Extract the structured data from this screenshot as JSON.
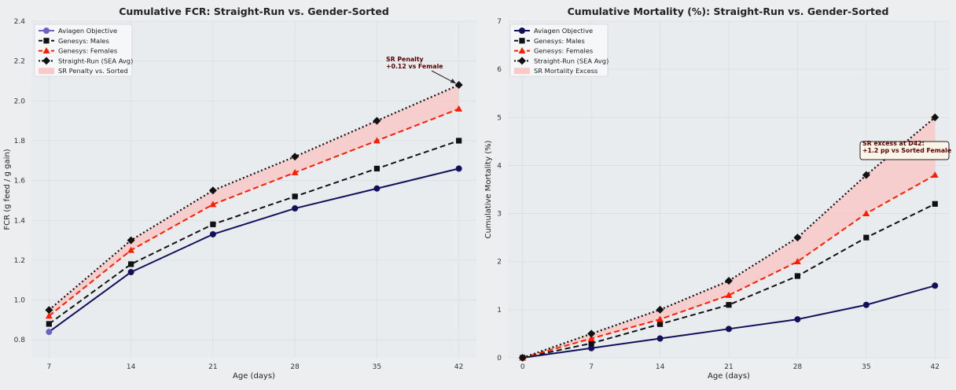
{
  "colors": {
    "figure_bg": "#eceef0",
    "plot_bg": "#e9ecef",
    "grid": "#d9dde1",
    "objective": "#12105a",
    "objective_marker_fcr": "#6b63c4",
    "males": "#111111",
    "females": "#ff1c00",
    "straight_run": "#111111",
    "penalty_fill": "#f8c9c7",
    "annotation_text": "#5a0000"
  },
  "chart_data": [
    {
      "type": "line",
      "title": "Cumulative FCR: Straight-Run vs. Gender-Sorted",
      "xlabel": "Age (days)",
      "ylabel": "FCR (g feed / g gain)",
      "x": [
        7,
        14,
        21,
        28,
        35,
        42
      ],
      "xlim": [
        5.5,
        43.5
      ],
      "ylim": [
        0.71,
        2.4
      ],
      "xticks": [
        7,
        14,
        21,
        28,
        35,
        42
      ],
      "yticks": [
        0.8,
        1.0,
        1.2,
        1.4,
        1.6,
        1.8,
        2.0,
        2.2,
        2.4
      ],
      "tick_decimals": 1,
      "grid": true,
      "legend_position": "top-left",
      "series": [
        {
          "key": "objective",
          "name": "Aviagen Objective",
          "style": "solid",
          "marker": "circle",
          "values": [
            0.84,
            1.14,
            1.33,
            1.46,
            1.56,
            1.66
          ]
        },
        {
          "key": "males",
          "name": "Genesys: Males",
          "style": "dashed",
          "marker": "square",
          "values": [
            0.88,
            1.18,
            1.38,
            1.52,
            1.66,
            1.8
          ]
        },
        {
          "key": "females",
          "name": "Genesys: Females",
          "style": "dashed",
          "marker": "triangle",
          "values": [
            0.92,
            1.25,
            1.48,
            1.64,
            1.8,
            1.96
          ]
        },
        {
          "key": "straight_run",
          "name": "Straight-Run (SEA Avg)",
          "style": "dotted",
          "marker": "diamond",
          "values": [
            0.95,
            1.3,
            1.55,
            1.72,
            1.9,
            2.08
          ]
        }
      ],
      "band": {
        "name": "SR Penalty vs. Sorted",
        "lower": "females",
        "upper": "straight_run"
      },
      "annotation": {
        "lines": [
          "SR Penalty",
          "+0.12 vs Female"
        ],
        "boxed": false,
        "target": [
          42,
          2.08
        ]
      }
    },
    {
      "type": "line",
      "title": "Cumulative Mortality (%): Straight-Run vs. Gender-Sorted",
      "xlabel": "Age (days)",
      "ylabel": "Cumulative Mortality (%)",
      "x": [
        0,
        7,
        14,
        21,
        28,
        35,
        42
      ],
      "xlim": [
        -1.5,
        43.5
      ],
      "ylim": [
        0,
        7
      ],
      "xticks": [
        0,
        7,
        14,
        21,
        28,
        35,
        42
      ],
      "yticks": [
        0,
        1,
        2,
        3,
        4,
        5,
        6,
        7
      ],
      "tick_decimals": 0,
      "grid": true,
      "legend_position": "top-left",
      "series": [
        {
          "key": "objective",
          "name": "Aviagen Objective",
          "style": "solid",
          "marker": "circle",
          "values": [
            0,
            0.2,
            0.4,
            0.6,
            0.8,
            1.1,
            1.5
          ]
        },
        {
          "key": "males",
          "name": "Genesys: Males",
          "style": "dashed",
          "marker": "square",
          "values": [
            0,
            0.3,
            0.7,
            1.1,
            1.7,
            2.5,
            3.2
          ]
        },
        {
          "key": "females",
          "name": "Genesys: Females",
          "style": "dashed",
          "marker": "triangle",
          "values": [
            0,
            0.4,
            0.8,
            1.3,
            2.0,
            3.0,
            3.8
          ]
        },
        {
          "key": "straight_run",
          "name": "Straight-Run (SEA Avg)",
          "style": "dotted",
          "marker": "diamond",
          "values": [
            0,
            0.5,
            1.0,
            1.6,
            2.5,
            3.8,
            5.0
          ]
        }
      ],
      "band": {
        "name": "SR Mortality Excess",
        "lower": "females",
        "upper": "straight_run"
      },
      "annotation": {
        "lines": [
          "SR excess at D42:",
          "+1.2 pp vs Sorted Female"
        ],
        "boxed": true,
        "target": null
      }
    }
  ]
}
